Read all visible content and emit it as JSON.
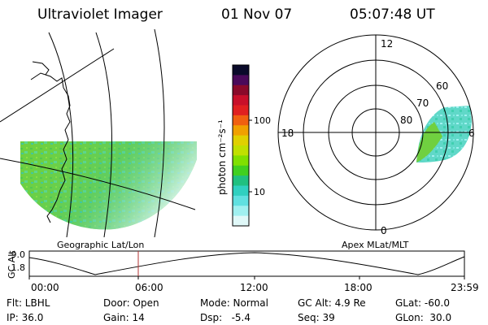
{
  "header": {
    "instrument": "Ultraviolet Imager",
    "date": "01 Nov 07",
    "time": "05:07:48 UT"
  },
  "left_panel": {
    "caption": "Geographic Lat/Lon"
  },
  "right_panel": {
    "caption": "Apex MLat/MLT",
    "mlt_labels": [
      "12",
      "18",
      "6",
      "0"
    ],
    "lat_labels": [
      "60",
      "70",
      "80"
    ]
  },
  "colorbar": {
    "unit_label": "photon cm⁻²s⁻¹",
    "ticks": [
      "100",
      "10"
    ],
    "colors": [
      "#0a0a2a",
      "#4a0a5a",
      "#8a0a2a",
      "#c8102a",
      "#e02020",
      "#f06010",
      "#f0a000",
      "#e0d000",
      "#c0e000",
      "#80e000",
      "#40d020",
      "#20c080",
      "#30d0c0",
      "#60e0e0",
      "#a0f0f0",
      "#e0f8f8"
    ]
  },
  "altitude_plot": {
    "ylabel": "GC Alt",
    "yticks": [
      "9.0",
      "1.8"
    ],
    "xticks": [
      "00:00",
      "06:00",
      "12:00",
      "18:00",
      "23:59"
    ]
  },
  "info": {
    "row1": [
      "Flt: LBHL",
      "Door: Open",
      "Mode: Normal",
      "GC Alt: 4.9 Re",
      "GLat: -60.0"
    ],
    "row2": [
      "IP: 36.0",
      "Gain: 14",
      "Dsp:   -5.4",
      "Seq: 39",
      "GLon:  30.0"
    ]
  }
}
